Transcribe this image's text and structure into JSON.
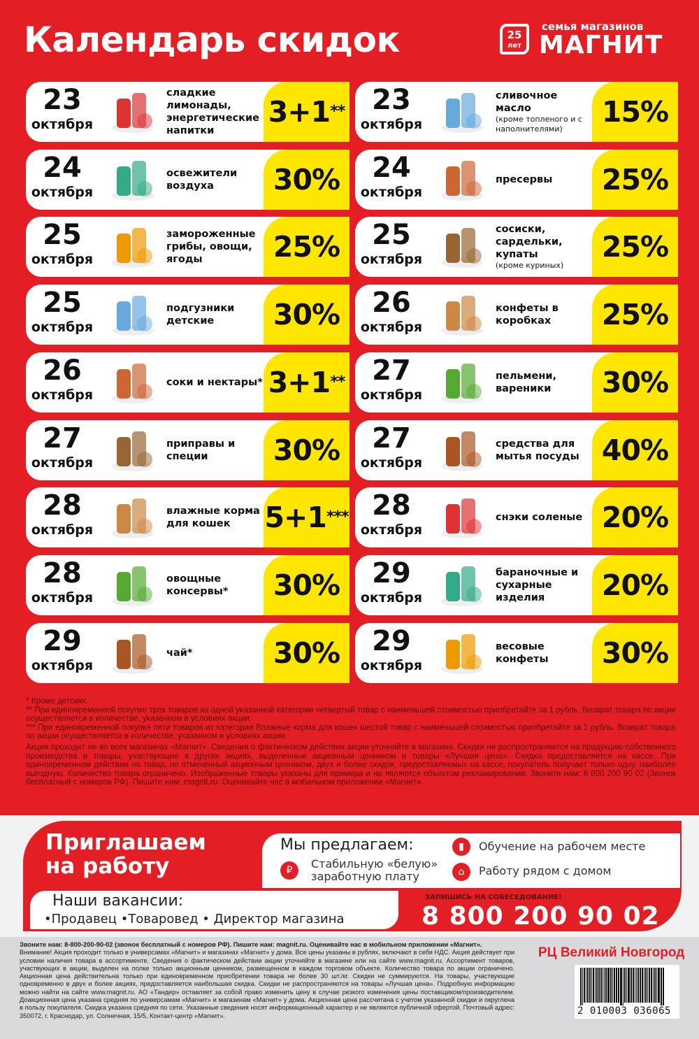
{
  "header": {
    "title": "Календарь скидок",
    "logo": {
      "tagline": "семья магазинов",
      "brand": "МАГНИТ",
      "anniversary": "25",
      "anniversary_unit": "лет"
    }
  },
  "colors": {
    "brand_red": "#e31e24",
    "discount_yellow": "#ffe600",
    "footer_gray": "#d9dadc"
  },
  "left": [
    {
      "day": "23",
      "month": "октября",
      "name": "сладкие лимонады, энергетические напитки",
      "note": "",
      "discount": "3+1",
      "mark": "**",
      "icon": "soda-bottles"
    },
    {
      "day": "24",
      "month": "октября",
      "name": "освежители воздуха",
      "note": "",
      "discount": "30%",
      "mark": "",
      "icon": "air-freshener"
    },
    {
      "day": "25",
      "month": "октября",
      "name": "замороженные грибы, овощи, ягоды",
      "note": "",
      "discount": "25%",
      "mark": "",
      "icon": "frozen-food"
    },
    {
      "day": "25",
      "month": "октября",
      "name": "подгузники детские",
      "note": "",
      "discount": "30%",
      "mark": "",
      "icon": "diapers"
    },
    {
      "day": "26",
      "month": "октября",
      "name": "соки и нектары*",
      "note": "",
      "discount": "3+1",
      "mark": "**",
      "icon": "juice-jug"
    },
    {
      "day": "27",
      "month": "октября",
      "name": "приправы и специи",
      "note": "",
      "discount": "30%",
      "mark": "",
      "icon": "spices"
    },
    {
      "day": "28",
      "month": "октября",
      "name": "влажные корма для кошек",
      "note": "",
      "discount": "5+1",
      "mark": "***",
      "icon": "cat-food"
    },
    {
      "day": "28",
      "month": "октября",
      "name": "овощные консервы*",
      "note": "",
      "discount": "30%",
      "mark": "",
      "icon": "canned-vegetables"
    },
    {
      "day": "29",
      "month": "октября",
      "name": "чай*",
      "note": "",
      "discount": "30%",
      "mark": "",
      "icon": "tea"
    }
  ],
  "right": [
    {
      "day": "23",
      "month": "октября",
      "name": "сливочное масло",
      "note": "(кроме топленого и с наполнителями)",
      "discount": "15%",
      "mark": "",
      "icon": "butter"
    },
    {
      "day": "24",
      "month": "октября",
      "name": "пресервы",
      "note": "",
      "discount": "25%",
      "mark": "",
      "icon": "preserves"
    },
    {
      "day": "25",
      "month": "октября",
      "name": "сосиски, сардельки, купаты",
      "note": "(кроме куриных)",
      "discount": "25%",
      "mark": "",
      "icon": "sausages"
    },
    {
      "day": "26",
      "month": "октября",
      "name": "конфеты в коробках",
      "note": "",
      "discount": "25%",
      "mark": "",
      "icon": "boxed-candy"
    },
    {
      "day": "27",
      "month": "октября",
      "name": "пельмени, вареники",
      "note": "",
      "discount": "30%",
      "mark": "",
      "icon": "dumplings"
    },
    {
      "day": "27",
      "month": "октября",
      "name": "средства для мытья посуды",
      "note": "",
      "discount": "40%",
      "mark": "",
      "icon": "dish-soap"
    },
    {
      "day": "28",
      "month": "октября",
      "name": "снэки соленые",
      "note": "",
      "discount": "20%",
      "mark": "",
      "icon": "snacks"
    },
    {
      "day": "29",
      "month": "октября",
      "name": "бараночные и сухарные изделия",
      "note": "",
      "discount": "20%",
      "mark": "",
      "icon": "bagels"
    },
    {
      "day": "29",
      "month": "октября",
      "name": "весовые конфеты",
      "note": "",
      "discount": "30%",
      "mark": "",
      "icon": "candy"
    }
  ],
  "notes": [
    "* Кроме детских.",
    "** При единовременной покупке трех товаров из одной указанной категории четвертый товар с наименьшей стоимостью приобретайте за 1 рубль. Возврат товара по акции осуществляется в количестве, указанном в условиях акции.",
    "*** При единовременной покупке пяти товаров из категории Влажные корма для кошек шестой товар с наименьшей стоимостью приобретайте за 1 рубль. Возврат товара по акции осуществляется в количестве, указанном в условиях акции.",
    "Акция проходит не во всех магазинах «Магнит». Сведения о фактическом действии акции уточняйте в магазине. Скидки не распространяются на продукцию собственного производства и товары, участвующие в других акциях, выделенные акционным ценником и товары «Лучшая цена». Скидка предоставляется на кассе. При единовременном действии на товар, не отмеченный акционным ценником, двух и более скидок, предоставляемых на кассе, покупатель получает только одну, наиболее выгодную. Количество товара ограничено. Изображенные товары указаны для примера и не являются объектом рекламирования. Звоните нам: 8 800 200 90 02 (Звонок бесплатный с номеров РФ). Пишите нам: magnit.ru. Оценивайте нас в мобильном приложении «Магнит»."
  ],
  "jobs": {
    "invite": "Приглашаем на работу",
    "offer_title": "Мы предлагаем:",
    "offer_salary": "Стабильную «белую» заработную плату",
    "offer_training": "Обучение на рабочем месте",
    "offer_near_home": "Работу рядом с домом",
    "vacancies_title": "Наши вакансии:",
    "vacancies": "•Продавец •Товаровед • Директор магазина",
    "call_to_action": "ЗАПИШИСЬ НА СОБЕСЕДОВАНИЕ!",
    "phone": "8 800 200 90 02"
  },
  "footer": {
    "bold": "Звоните нам: 8-800-200-90-02 (звонок бесплатный с номеров РФ). Пишите нам: magnit.ru. Оценивайте нас в мобильном приложении «Магнит».",
    "text": "Внимание! Акция проходит только в универсамах «Магнит» и магазинах «Магнит» у дома. Все цены указаны в рублях, включают в себя НДС. Акция действует при условии наличия товара в ассортименте. Сведения о фактическом действии акции уточняйте в магазине или на сайте www.magnit.ru. Ассортимент товаров, участвующих в акции, выделен на полке только акционным ценником, размещенном в каждом торговом объекте. Количество товара по акции ограничено. Акционная цена действительна только при единовременном приобретении товара не более 30 шт./кг. Скидки не суммируются. На товары, участвующие одновременно в двух и более акциях, предоставляется наибольшая скидка. Скидки не распространяются на товары «Лучшая цена». Подробную информацию можно найти на сайте www.magnit.ru. АО «Тандер» оставляет за собой право изменить цену в случае резкого изменения цены поставщиком/производителем. Доакционная цена указана средняя по универсамам «Магнит» и магазинам «Магнит» у дома. Акционная цена рассчитана с учетом указанной скидки и округлена в пользу покупателя. Скидка указана средняя по сети. Указанные сведения носят информационный характер и не являются публичной офертой. Почтовый адрес: 350072, г. Краснодар, ул. Солнечная, 15/5, Контакт-центр «Магнит».",
    "region": "РЦ Великий Новгород",
    "barcode": "2 010003 036065"
  }
}
